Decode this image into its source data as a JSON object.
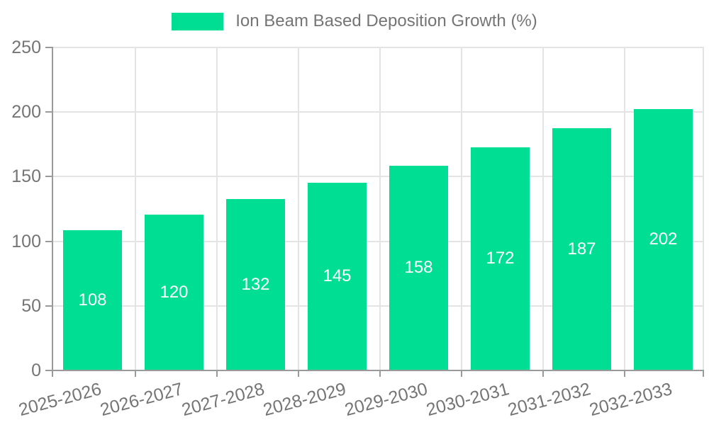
{
  "chart_data": {
    "type": "bar",
    "title": "",
    "legend": "Ion Beam Based Deposition Growth (%)",
    "legend_position": "top",
    "categories": [
      "2025-2026",
      "2026-2027",
      "2027-2028",
      "2028-2029",
      "2029-2030",
      "2030-2031",
      "2031-2032",
      "2032-2033"
    ],
    "values": [
      108,
      120,
      132,
      145,
      158,
      172,
      187,
      202
    ],
    "xlabel": "",
    "ylabel": "",
    "ylim": [
      0,
      250
    ],
    "yticks": [
      0,
      50,
      100,
      150,
      200,
      250
    ],
    "grid": true,
    "bar_labels_visible": true,
    "colors": {
      "bar": "#00DE94",
      "axis": "#9a9a9a",
      "grid": "#e4e4e4",
      "tick_text": "#757575",
      "bar_label_text": "#ffffff",
      "background": "#ffffff"
    }
  }
}
